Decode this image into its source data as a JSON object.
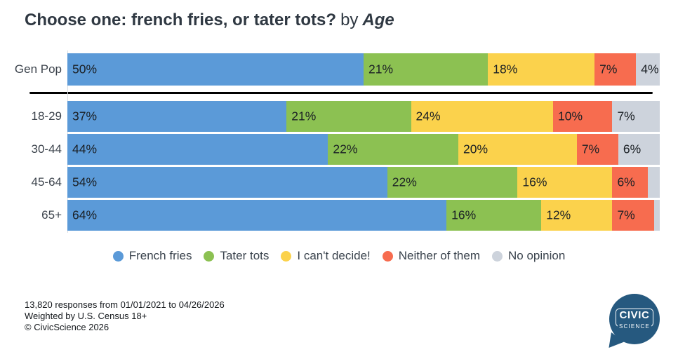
{
  "title": {
    "question": "Choose one: french fries, or tater tots?",
    "connector": "by",
    "dimension": "Age"
  },
  "chart_data": {
    "type": "bar",
    "stacked": true,
    "orientation": "horizontal",
    "title": "Choose one: french fries, or tater tots? by Age",
    "unit": "%",
    "x_range": [
      0,
      100
    ],
    "grid": false,
    "legend_position": "bottom",
    "categories": [
      "Gen Pop",
      "18-29",
      "30-44",
      "45-64",
      "65+"
    ],
    "series": [
      {
        "name": "French fries",
        "color": "#5B9AD8",
        "values": [
          50,
          37,
          44,
          54,
          64
        ]
      },
      {
        "name": "Tater tots",
        "color": "#8CC152",
        "values": [
          21,
          21,
          22,
          22,
          16
        ]
      },
      {
        "name": "I can't decide!",
        "color": "#FBD24C",
        "values": [
          18,
          24,
          20,
          16,
          12
        ]
      },
      {
        "name": "Neither of them",
        "color": "#F76C4F",
        "values": [
          7,
          10,
          7,
          6,
          7
        ]
      },
      {
        "name": "No opinion",
        "color": "#CDD3DC",
        "values": [
          4,
          7,
          6,
          2,
          1
        ],
        "show_labels": [
          true,
          true,
          true,
          false,
          false
        ]
      }
    ]
  },
  "footer": {
    "lines": [
      "13,820 responses from 01/01/2021 to 04/26/2026",
      "Weighted by U.S. Census 18+",
      "© CivicScience 2026"
    ]
  },
  "logo": {
    "top": "CIVIC",
    "bottom": "SCIENCE"
  },
  "colors": {
    "title_text": "#2F3842",
    "row_label_text": "#3D444D",
    "segment_label_text": "#1B2025",
    "divider": "#000000",
    "logo_background": "#26597F"
  }
}
